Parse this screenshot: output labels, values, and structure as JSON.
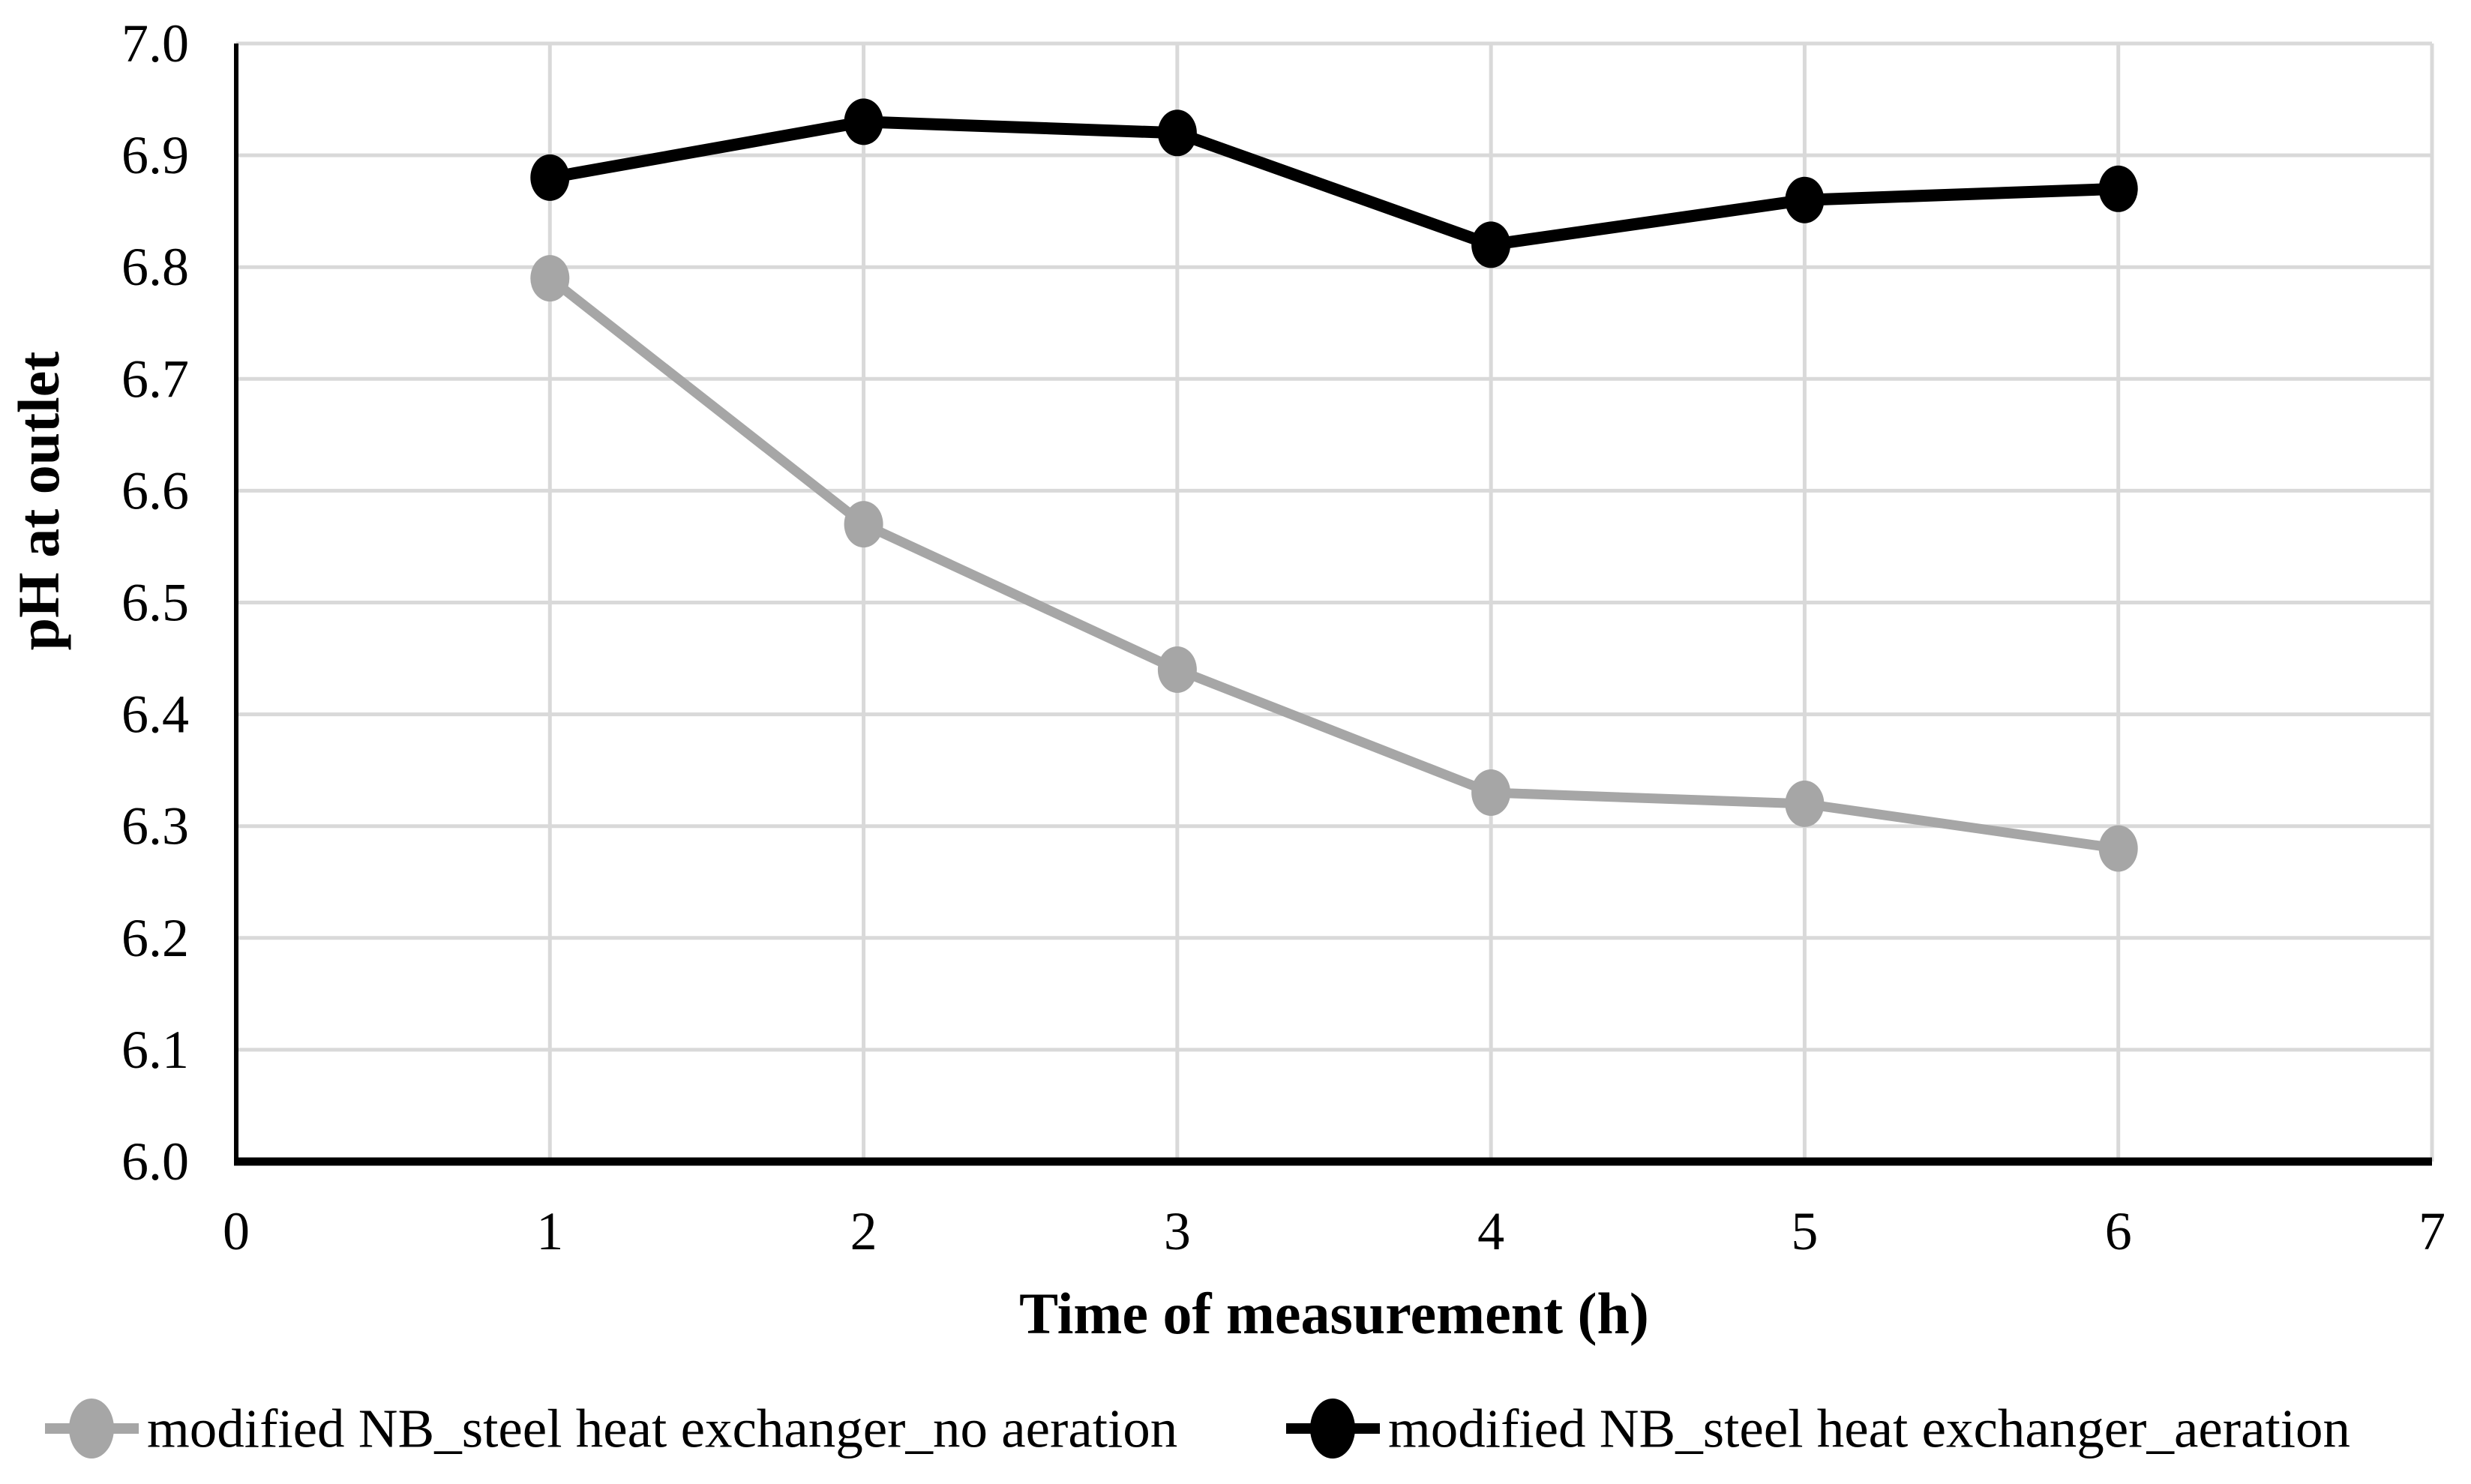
{
  "chart_data": {
    "type": "line",
    "title": "",
    "xlabel": "Time of measurement (h)",
    "ylabel": "pH at outlet",
    "xlim": [
      0,
      7
    ],
    "ylim": [
      6.0,
      7.0
    ],
    "x_ticks": [
      0,
      1,
      2,
      3,
      4,
      5,
      6,
      7
    ],
    "y_ticks": [
      "6.0",
      "6.1",
      "6.2",
      "6.3",
      "6.4",
      "6.5",
      "6.6",
      "6.7",
      "6.8",
      "6.9",
      "7.0"
    ],
    "y_tick_step": 0.1,
    "grid": true,
    "legend_position": "bottom",
    "x": [
      1,
      2,
      3,
      4,
      5,
      6
    ],
    "series": [
      {
        "name": "modified NB_steel heat exchanger_no aeration",
        "color": "#a6a6a6",
        "marker": "circle",
        "values": [
          6.79,
          6.57,
          6.44,
          6.33,
          6.32,
          6.28
        ]
      },
      {
        "name": "modified NB_steel heat exchanger_aeration",
        "color": "#000000",
        "marker": "circle",
        "values": [
          6.88,
          6.93,
          6.92,
          6.82,
          6.86,
          6.87
        ]
      }
    ],
    "colors": {
      "background": "#ffffff",
      "gridline": "#d9d9d9",
      "axis_line": "#000000",
      "text": "#000000"
    }
  }
}
